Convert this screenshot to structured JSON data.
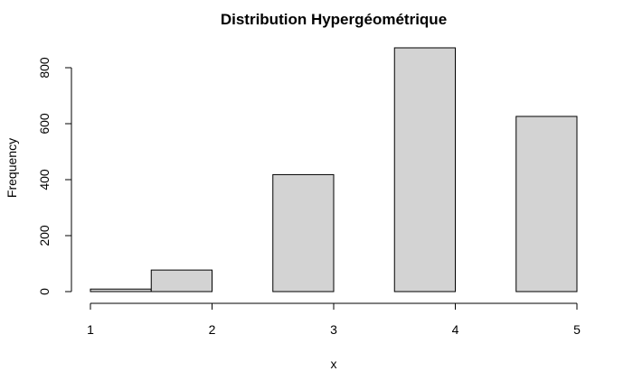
{
  "chart_data": {
    "type": "bar",
    "title": "Distribution Hypergéométrique",
    "xlabel": "x",
    "ylabel": "Frequency",
    "bins": [
      {
        "x0": 1.0,
        "x1": 1.5,
        "value": 9
      },
      {
        "x0": 1.5,
        "x1": 2.0,
        "value": 77
      },
      {
        "x0": 2.5,
        "x1": 3.0,
        "value": 418
      },
      {
        "x0": 3.5,
        "x1": 4.0,
        "value": 871
      },
      {
        "x0": 4.5,
        "x1": 5.0,
        "value": 626
      }
    ],
    "xlim": [
      1,
      5
    ],
    "ylim": [
      0,
      870
    ],
    "x_ticks": [
      "1",
      "2",
      "3",
      "4",
      "5"
    ],
    "y_ticks": [
      "0",
      "200",
      "400",
      "600",
      "800"
    ],
    "grid": false,
    "colors": {
      "bar_fill": "#d3d3d3",
      "bar_stroke": "#000000"
    }
  }
}
